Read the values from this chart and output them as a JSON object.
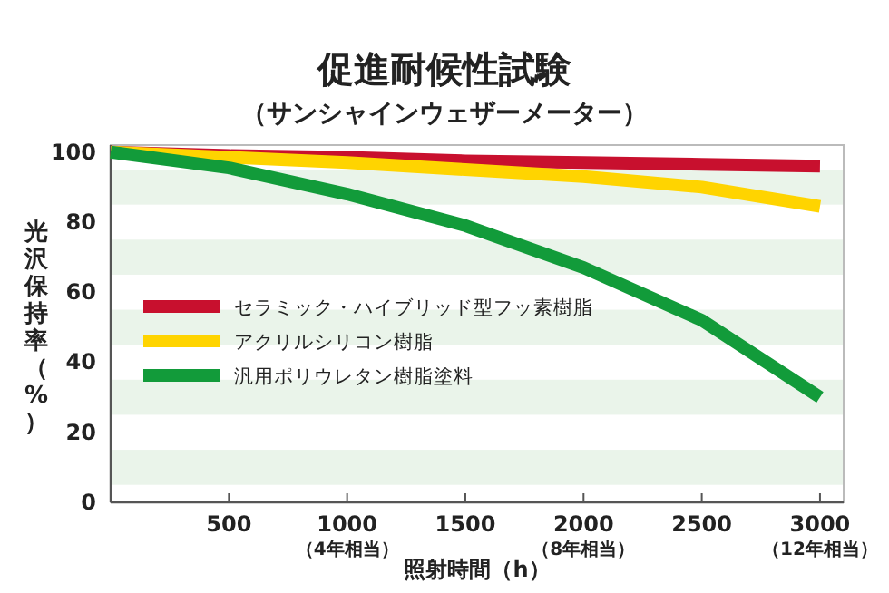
{
  "chart_data": {
    "type": "line",
    "title": "促進耐候性試験",
    "subtitle": "（サンシャインウェザーメーター）",
    "xlabel": "照射時間（h）",
    "ylabel": "光沢保持率（%）",
    "x": [
      0,
      500,
      1000,
      1500,
      2000,
      2500,
      3000
    ],
    "series": [
      {
        "name": "セラミック・ハイブリッド型フッ素樹脂",
        "color": "#c8102e",
        "values": [
          100,
          99,
          98.5,
          97.5,
          97,
          96.5,
          96
        ]
      },
      {
        "name": "アクリルシリコン樹脂",
        "color": "#ffd400",
        "values": [
          100,
          98.5,
          97,
          95,
          93,
          90,
          84.5
        ]
      },
      {
        "name": "汎用ポリウレタン樹脂塗料",
        "color": "#129b3a",
        "values": [
          100,
          95.5,
          88,
          79,
          67,
          52,
          30
        ]
      }
    ],
    "xlim": [
      0,
      3100
    ],
    "ylim": [
      0,
      102
    ],
    "xticks": [
      {
        "value": 0,
        "label": null
      },
      500,
      {
        "value": 1000,
        "label": "1000\n（4年相当）"
      },
      1500,
      {
        "value": 2000,
        "label": "2000\n（8年相当）"
      },
      2500,
      {
        "value": 3000,
        "label": "3000\n（12年相当）"
      }
    ],
    "yticks": [
      0,
      20,
      40,
      60,
      80,
      100
    ],
    "bands": [
      {
        "axis": "y",
        "from": 5,
        "to": 15,
        "color": "#eaf4ea"
      },
      {
        "axis": "y",
        "from": 25,
        "to": 35,
        "color": "#eaf4ea"
      },
      {
        "axis": "y",
        "from": 45,
        "to": 55,
        "color": "#eaf4ea"
      },
      {
        "axis": "y",
        "from": 65,
        "to": 75,
        "color": "#eaf4ea"
      },
      {
        "axis": "y",
        "from": 85,
        "to": 95,
        "color": "#eaf4ea"
      }
    ],
    "grid": false,
    "legend": "bottom left",
    "marker": "none",
    "line_style": "solid"
  }
}
